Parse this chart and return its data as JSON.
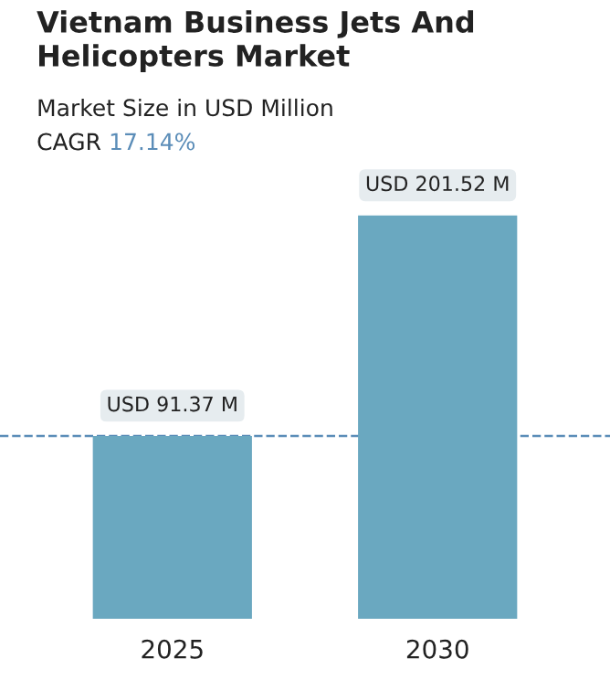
{
  "chart_data": {
    "type": "bar",
    "title": "Vietnam Business Jets And Helicopters Market",
    "subtitle": "Market Size in USD Million",
    "annotations": [
      "CAGR 17.14%"
    ],
    "categories": [
      "2025",
      "2030"
    ],
    "values": [
      91.37,
      201.52
    ],
    "value_labels": [
      "USD 91.37 M",
      "USD 201.52 M"
    ],
    "color": "#6aa8c0",
    "ref_lines": [
      {
        "axis": "y",
        "value": 91.37,
        "color": "#5b8db8",
        "line_style": "dashed"
      }
    ],
    "grid": false,
    "legend": false
  }
}
